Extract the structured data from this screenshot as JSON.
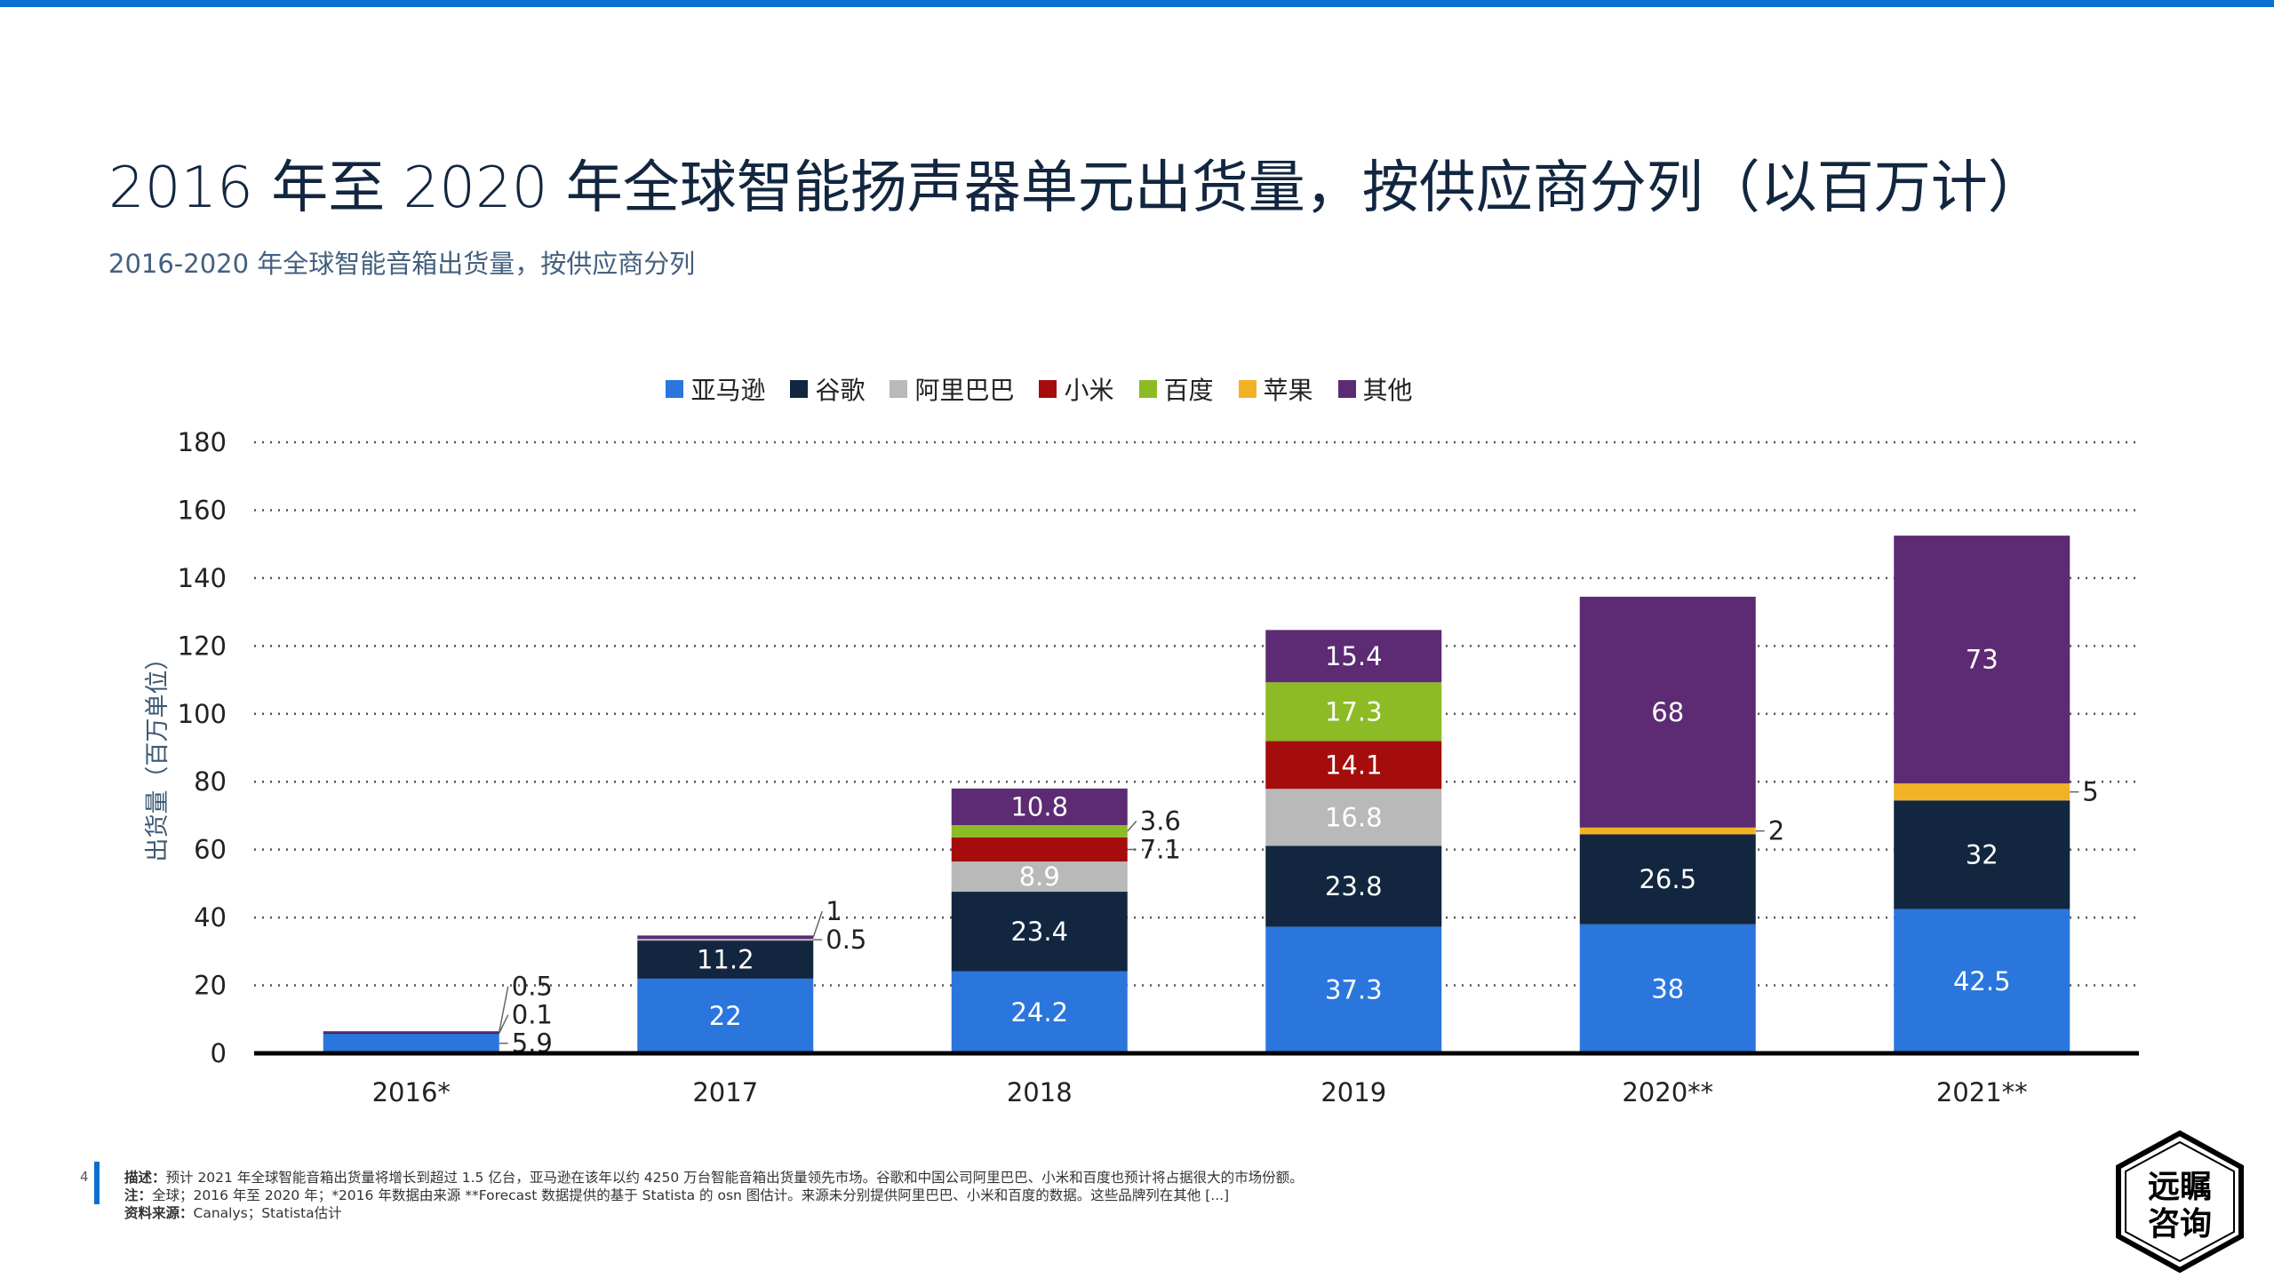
{
  "header": {
    "title": "2016 年至 2020 年全球智能扬声器单元出货量，按供应商分列（以百万计）",
    "subtitle": "2016-2020 年全球智能音箱出货量，按供应商分列"
  },
  "chart_data": {
    "type": "bar",
    "stacked": true,
    "categories": [
      "2016*",
      "2017",
      "2018",
      "2019",
      "2020**",
      "2021**"
    ],
    "ylabel": "出货量（百万单位）",
    "ylim": [
      0,
      180
    ],
    "yticks": [
      0,
      20,
      40,
      60,
      80,
      100,
      120,
      140,
      160,
      180
    ],
    "grid": "horizontal-dotted",
    "legend_position": "top",
    "series": [
      {
        "name": "亚马逊",
        "color": "#2a76dd",
        "values": [
          5.9,
          22,
          24.2,
          37.3,
          38,
          42.5
        ]
      },
      {
        "name": "谷歌",
        "color": "#12263f",
        "values": [
          0.1,
          11.2,
          23.4,
          23.8,
          26.5,
          32
        ]
      },
      {
        "name": "阿里巴巴",
        "color": "#b9b9b9",
        "values": [
          null,
          0.5,
          8.9,
          16.8,
          null,
          null
        ]
      },
      {
        "name": "小米",
        "color": "#a50d0d",
        "values": [
          null,
          null,
          7.1,
          14.1,
          null,
          null
        ]
      },
      {
        "name": "百度",
        "color": "#8cbb26",
        "values": [
          null,
          null,
          3.6,
          17.3,
          null,
          null
        ]
      },
      {
        "name": "苹果",
        "color": "#f1b325",
        "values": [
          null,
          null,
          null,
          null,
          2,
          5
        ]
      },
      {
        "name": "其他",
        "color": "#5c2b73",
        "values": [
          0.5,
          1,
          10.8,
          15.4,
          68,
          73
        ]
      }
    ]
  },
  "footer": {
    "page": "4",
    "desc_label": "描述：",
    "desc": "预计 2021 年全球智能音箱出货量将增长到超过 1.5 亿台，亚马逊在该年以约 4250 万台智能音箱出货量领先市场。谷歌和中国公司阿里巴巴、小米和百度也预计将占据很大的市场份额。",
    "note_label": "注：",
    "note": "全球；2016 年至 2020 年；*2016 年数据由来源 **Forecast 数据提供的基于 Statista 的 osn 图估计。来源未分别提供阿里巴巴、小米和百度的数据。这些品牌列在其他 [...]",
    "source_label": "资料来源：",
    "source": "Canalys；Statista估计"
  },
  "logo": {
    "text": "远瞩咨询"
  },
  "colors": {
    "accent": "#0a6fd0"
  }
}
